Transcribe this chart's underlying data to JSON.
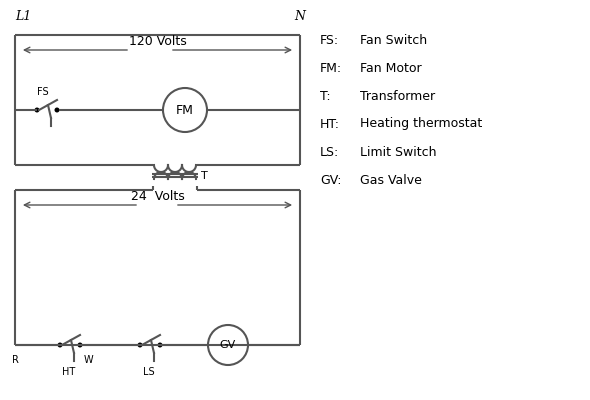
{
  "background_color": "#ffffff",
  "line_color": "#555555",
  "text_color": "#000000",
  "L1_label": "L1",
  "N_label": "N",
  "volts_120": "120 Volts",
  "volts_24": "24  Volts",
  "legend_items": [
    [
      "FS:",
      "Fan Switch"
    ],
    [
      "FM:",
      "Fan Motor"
    ],
    [
      "T:",
      "Transformer"
    ],
    [
      "HT:",
      "Heating thermostat"
    ],
    [
      "LS:",
      "Limit Switch"
    ],
    [
      "GV:",
      "Gas Valve"
    ]
  ],
  "figsize": [
    5.9,
    4.0
  ],
  "dpi": 100,
  "xlim": [
    0,
    590
  ],
  "ylim": [
    0,
    400
  ]
}
